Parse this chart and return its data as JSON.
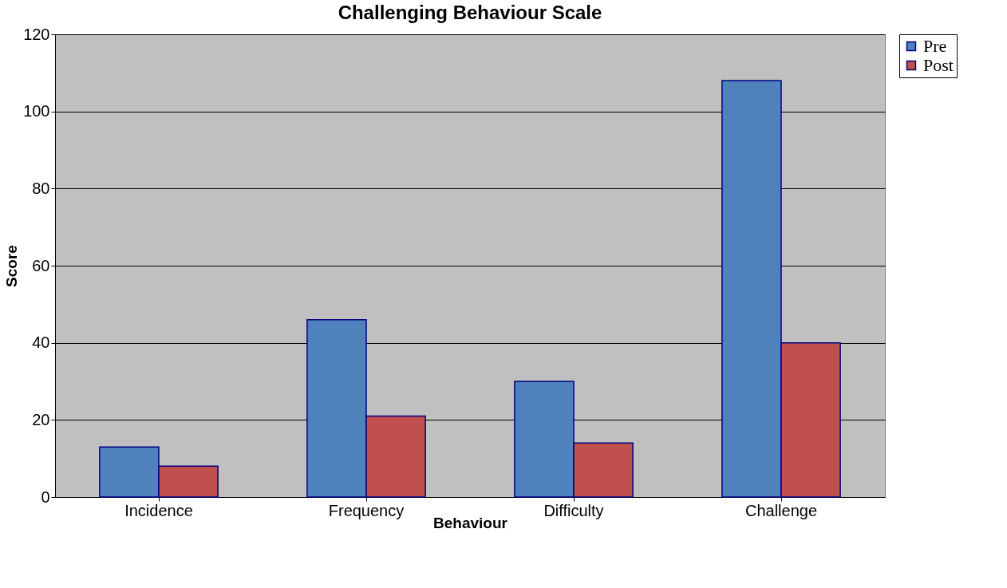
{
  "chart_data": {
    "type": "bar",
    "title": "Challenging Behaviour Scale",
    "xlabel": "Behaviour",
    "ylabel": "Score",
    "categories": [
      "Incidence",
      "Frequency",
      "Difficulty",
      "Challenge"
    ],
    "series": [
      {
        "name": "Pre",
        "color": "#4f81bd",
        "values": [
          13,
          46,
          30,
          108
        ]
      },
      {
        "name": "Post",
        "color": "#c0504d",
        "values": [
          8,
          21,
          14,
          40
        ]
      }
    ],
    "ylim": [
      0,
      120
    ],
    "yticks": [
      0,
      20,
      40,
      60,
      80,
      100,
      120
    ],
    "grid": "y",
    "legend": "right"
  }
}
